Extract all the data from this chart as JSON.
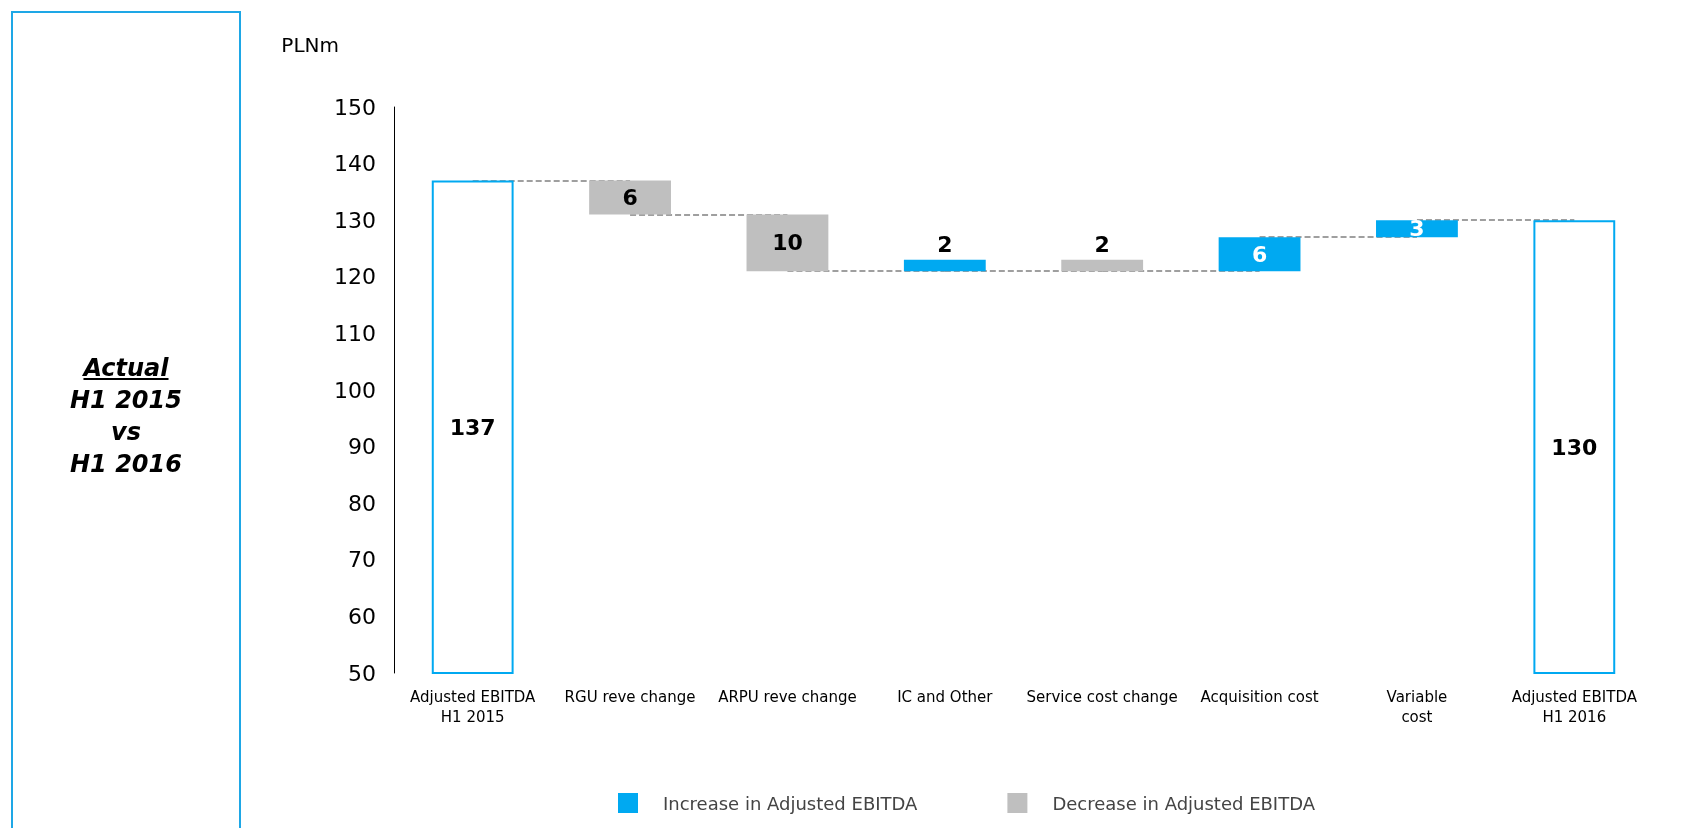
{
  "chart_data": {
    "type": "bar",
    "ylabel": "PLNm",
    "categories": [
      "Adjusted EBITDA\nH1 2015",
      "RGU reve change",
      "ARPU reve change",
      "IC and Other",
      "Service cost change",
      "Acquisition cost",
      "Variable\ncost",
      "Adjusted EBITDA\nH1 2016"
    ],
    "series": [
      {
        "color": "#00a9f1",
        "values": [
          137,
          null,
          null,
          null,
          null,
          null,
          null,
          130
        ]
      },
      {
        "name": "Increase in Adjusted EBITDA",
        "color": "#00a9f1",
        "values": [
          null,
          null,
          null,
          2,
          null,
          6,
          3,
          null
        ],
        "base": [
          null,
          null,
          null,
          121,
          null,
          121,
          127,
          null
        ]
      },
      {
        "name": "Decrease in Adjusted EBITDA",
        "color": "#bfbfbf",
        "values": [
          null,
          6,
          10,
          null,
          2,
          null,
          null,
          null
        ],
        "base": [
          null,
          131,
          121,
          null,
          121,
          null,
          null,
          null
        ]
      }
    ],
    "ylim": [
      50,
      150
    ],
    "yticks": [
      50,
      60,
      70,
      80,
      90,
      100,
      110,
      120,
      130,
      140,
      150
    ],
    "data_labels": true,
    "legend": "bottom",
    "grid": false,
    "annotations": [
      "Actual",
      "H1 2015",
      "vs",
      "H1 2016"
    ]
  }
}
